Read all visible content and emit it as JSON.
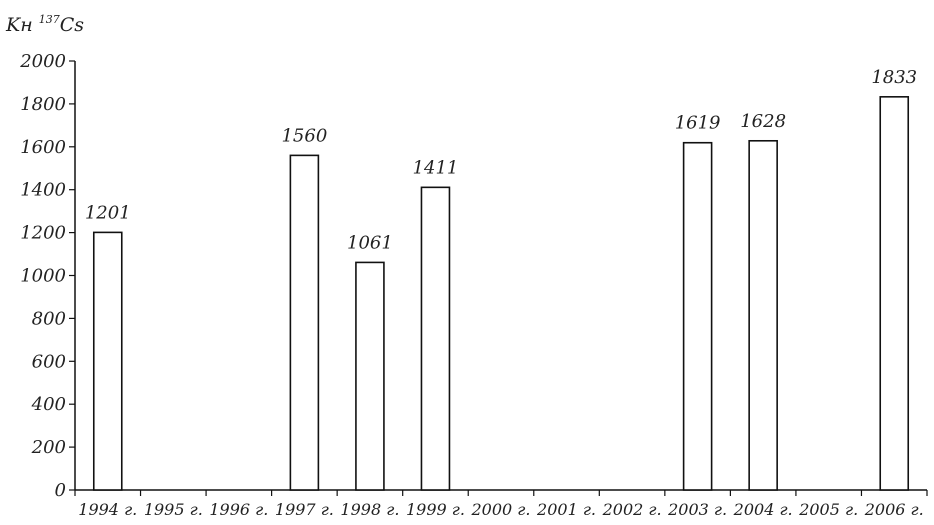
{
  "chart_data": {
    "type": "bar",
    "ylabel_main": "Kн",
    "ylabel_sup": "137",
    "ylabel_tail": "Cs",
    "xlabel": "",
    "ylim": [
      0,
      2000
    ],
    "yticks": [
      0,
      200,
      400,
      600,
      800,
      1000,
      1200,
      1400,
      1600,
      1800,
      2000
    ],
    "categories": [
      "1994 г.",
      "1995 г.",
      "1996 г.",
      "1997 г.",
      "1998 г.",
      "1999 г.",
      "2000 г.",
      "2001 г.",
      "2002 г.",
      "2003 г.",
      "2004 г.",
      "2005 г.",
      "2006 г."
    ],
    "values": [
      1201,
      null,
      null,
      1560,
      1061,
      1411,
      null,
      null,
      null,
      1619,
      1628,
      null,
      1833
    ],
    "data_labels": [
      "1201",
      "",
      "",
      "1560",
      "1061",
      "1411",
      "",
      "",
      "",
      "1619",
      "1628",
      "",
      "1833"
    ],
    "grid": false,
    "bar_fill": "#ffffff",
    "bar_stroke": "#111111"
  }
}
